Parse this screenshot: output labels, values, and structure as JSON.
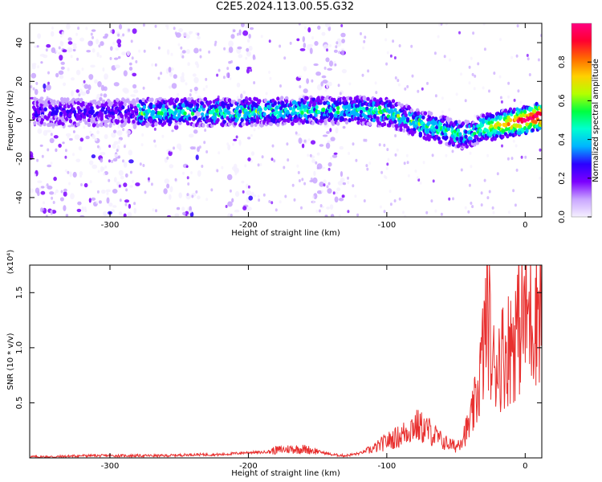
{
  "page": {
    "title": "C2E5.2024.113.00.55.G32"
  },
  "chart_data": [
    {
      "type": "heatmap",
      "name": "spectrogram",
      "title": "",
      "xlabel": "Height of straight line (km)",
      "ylabel": "Frequency (Hz)",
      "xlim": [
        -358,
        12
      ],
      "ylim": [
        -50,
        50
      ],
      "xticks": [
        -300,
        -200,
        -100,
        0
      ],
      "yticks": [
        -40,
        -20,
        0,
        20,
        40
      ],
      "grid": false,
      "colorbar": {
        "label": "Normalized spectral amplitude",
        "range": [
          0,
          1
        ],
        "ticks": [
          0.0,
          0.2,
          0.4,
          0.6,
          0.8
        ],
        "colors": [
          "#f5f0ff",
          "#c9a6ff",
          "#7b00ff",
          "#2b00ff",
          "#00b4ff",
          "#00ffd0",
          "#00ff40",
          "#b4ff00",
          "#ffd000",
          "#ff6a00",
          "#ff0030",
          "#ff0080"
        ]
      },
      "ridge": {
        "x": [
          -280,
          -250,
          -200,
          -160,
          -120,
          -100,
          -80,
          -60,
          -45,
          -30,
          -15,
          0,
          10
        ],
        "y": [
          4,
          4,
          4,
          5,
          5,
          4,
          -1,
          -5,
          -8,
          -4,
          -2,
          0,
          2
        ],
        "peak_amplitude": 1.0
      },
      "noise_bands_x": [
        [
          -358,
          -280
        ],
        [
          -260,
          -235
        ],
        [
          -215,
          -195
        ],
        [
          -165,
          -130
        ]
      ]
    },
    {
      "type": "line",
      "name": "snr",
      "title": "",
      "xlabel": "Height of straight line (km)",
      "ylabel": "SNR (10 * v/v)",
      "exponent_label": "(x10⁴)",
      "xlim": [
        -358,
        12
      ],
      "ylim": [
        0,
        1.75
      ],
      "xticks": [
        -300,
        -200,
        -100,
        0
      ],
      "yticks": [
        0.5,
        1.0,
        1.5
      ],
      "grid": false,
      "color": "#e8302f",
      "x": [
        -358,
        -340,
        -320,
        -300,
        -280,
        -260,
        -240,
        -220,
        -200,
        -190,
        -180,
        -170,
        -160,
        -150,
        -140,
        -130,
        -120,
        -110,
        -100,
        -90,
        -80,
        -70,
        -60,
        -50,
        -40,
        -35,
        -30,
        -27,
        -24,
        -20,
        -15,
        -10,
        -5,
        0,
        5,
        12
      ],
      "y": [
        0.01,
        0.01,
        0.02,
        0.02,
        0.02,
        0.02,
        0.03,
        0.03,
        0.05,
        0.05,
        0.07,
        0.08,
        0.08,
        0.06,
        0.03,
        0.02,
        0.04,
        0.08,
        0.15,
        0.2,
        0.3,
        0.25,
        0.15,
        0.1,
        0.3,
        0.55,
        1.0,
        1.45,
        0.8,
        0.9,
        0.95,
        1.05,
        1.2,
        1.3,
        1.3,
        1.5
      ]
    }
  ]
}
